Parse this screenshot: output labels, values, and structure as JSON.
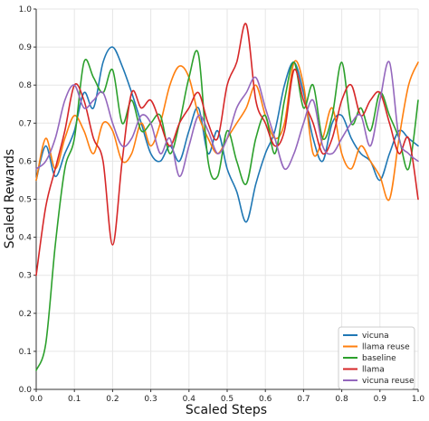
{
  "chart_data": {
    "type": "line",
    "xlabel": "Scaled Steps",
    "ylabel": "Scaled Rewards",
    "xlim": [
      0.0,
      1.0
    ],
    "ylim": [
      0.0,
      1.0
    ],
    "x_ticks": [
      "0.0",
      "0.1",
      "0.2",
      "0.3",
      "0.4",
      "0.5",
      "0.6",
      "0.7",
      "0.8",
      "0.9",
      "1.0"
    ],
    "y_ticks": [
      "0.0",
      "0.1",
      "0.2",
      "0.3",
      "0.4",
      "0.5",
      "0.6",
      "0.7",
      "0.8",
      "0.9",
      "1.0"
    ],
    "grid": true,
    "legend_position": "bottom-right",
    "x": [
      0.0,
      0.025,
      0.05,
      0.075,
      0.1,
      0.125,
      0.15,
      0.175,
      0.2,
      0.225,
      0.25,
      0.275,
      0.3,
      0.325,
      0.35,
      0.375,
      0.4,
      0.425,
      0.45,
      0.475,
      0.5,
      0.525,
      0.55,
      0.575,
      0.6,
      0.625,
      0.65,
      0.675,
      0.7,
      0.725,
      0.75,
      0.775,
      0.8,
      0.825,
      0.85,
      0.875,
      0.9,
      0.925,
      0.95,
      0.975,
      1.0
    ],
    "series": [
      {
        "name": "vicuna",
        "color": "#1f77b4",
        "values": [
          0.55,
          0.64,
          0.56,
          0.62,
          0.68,
          0.78,
          0.74,
          0.86,
          0.9,
          0.85,
          0.78,
          0.7,
          0.62,
          0.6,
          0.64,
          0.6,
          0.68,
          0.74,
          0.62,
          0.68,
          0.58,
          0.52,
          0.44,
          0.54,
          0.62,
          0.68,
          0.8,
          0.86,
          0.78,
          0.66,
          0.6,
          0.7,
          0.72,
          0.66,
          0.62,
          0.6,
          0.55,
          0.62,
          0.68,
          0.66,
          0.64
        ]
      },
      {
        "name": "llama reuse",
        "color": "#ff7f0e",
        "values": [
          0.55,
          0.66,
          0.58,
          0.66,
          0.72,
          0.68,
          0.62,
          0.7,
          0.68,
          0.6,
          0.62,
          0.7,
          0.64,
          0.7,
          0.8,
          0.85,
          0.82,
          0.72,
          0.66,
          0.62,
          0.66,
          0.7,
          0.74,
          0.8,
          0.72,
          0.66,
          0.7,
          0.86,
          0.8,
          0.62,
          0.66,
          0.74,
          0.62,
          0.58,
          0.64,
          0.6,
          0.56,
          0.5,
          0.66,
          0.8,
          0.86
        ]
      },
      {
        "name": "baseline",
        "color": "#2ca02c",
        "values": [
          0.05,
          0.12,
          0.38,
          0.58,
          0.66,
          0.86,
          0.82,
          0.78,
          0.84,
          0.7,
          0.76,
          0.68,
          0.7,
          0.72,
          0.62,
          0.7,
          0.82,
          0.88,
          0.6,
          0.56,
          0.68,
          0.6,
          0.54,
          0.66,
          0.72,
          0.62,
          0.76,
          0.86,
          0.74,
          0.8,
          0.66,
          0.72,
          0.86,
          0.7,
          0.74,
          0.68,
          0.78,
          0.72,
          0.66,
          0.58,
          0.76
        ]
      },
      {
        "name": "llama",
        "color": "#d62728",
        "values": [
          0.3,
          0.48,
          0.58,
          0.68,
          0.8,
          0.76,
          0.66,
          0.6,
          0.38,
          0.6,
          0.78,
          0.74,
          0.76,
          0.7,
          0.64,
          0.7,
          0.74,
          0.78,
          0.7,
          0.66,
          0.8,
          0.86,
          0.96,
          0.76,
          0.7,
          0.64,
          0.68,
          0.84,
          0.76,
          0.7,
          0.62,
          0.66,
          0.76,
          0.8,
          0.72,
          0.76,
          0.78,
          0.7,
          0.62,
          0.66,
          0.5
        ]
      },
      {
        "name": "vicuna reuse",
        "color": "#9467bd",
        "values": [
          0.58,
          0.6,
          0.66,
          0.76,
          0.8,
          0.74,
          0.76,
          0.78,
          0.7,
          0.64,
          0.66,
          0.72,
          0.7,
          0.62,
          0.66,
          0.56,
          0.64,
          0.72,
          0.68,
          0.62,
          0.66,
          0.74,
          0.78,
          0.82,
          0.74,
          0.66,
          0.58,
          0.62,
          0.7,
          0.76,
          0.64,
          0.62,
          0.66,
          0.7,
          0.72,
          0.64,
          0.76,
          0.86,
          0.66,
          0.62,
          0.6
        ]
      }
    ]
  }
}
